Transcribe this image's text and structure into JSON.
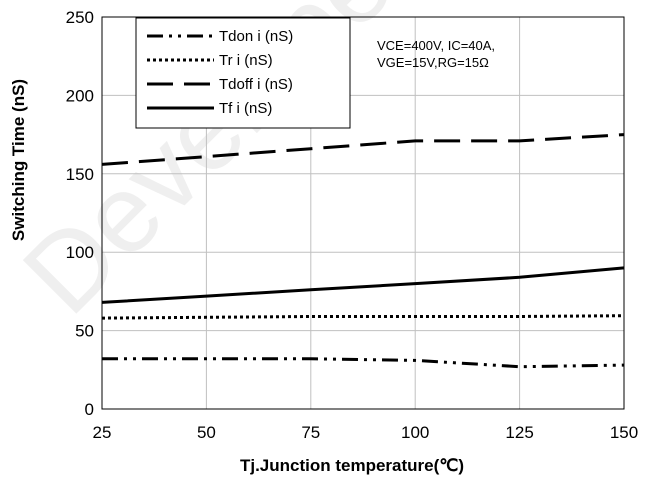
{
  "chart_data": {
    "type": "line",
    "xlabel": "Tj.Junction temperature(℃)",
    "ylabel": "Switching Time (nS)",
    "xlim": [
      25,
      150
    ],
    "ylim": [
      0,
      250
    ],
    "x_ticks": [
      "25",
      "50",
      "75",
      "100",
      "125",
      "150"
    ],
    "y_ticks": [
      "0",
      "50",
      "100",
      "150",
      "200",
      "250"
    ],
    "grid": true,
    "legend_position": "top-left",
    "x": [
      25,
      50,
      75,
      100,
      125,
      150
    ],
    "series": [
      {
        "name": "Tdon i (nS)",
        "style": "dash-dot-dot",
        "values": [
          32,
          32,
          32,
          31,
          27,
          28
        ]
      },
      {
        "name": "Tr i (nS)",
        "style": "dotted",
        "values": [
          58,
          58.5,
          59,
          59,
          59,
          59.5
        ]
      },
      {
        "name": "Tdoff i (nS)",
        "style": "dashed",
        "values": [
          156,
          161,
          166,
          171,
          171,
          175
        ]
      },
      {
        "name": "Tf i (nS)",
        "style": "solid",
        "values": [
          68,
          72,
          76,
          80,
          84,
          90
        ]
      }
    ],
    "annotations": [
      "VCE=400V, IC=40A,",
      "VGE=15V,RG=15Ω"
    ]
  },
  "watermark": "Developed",
  "colors": {
    "line": "#000000",
    "grid": "#c0c0c0",
    "background": "#ffffff"
  }
}
